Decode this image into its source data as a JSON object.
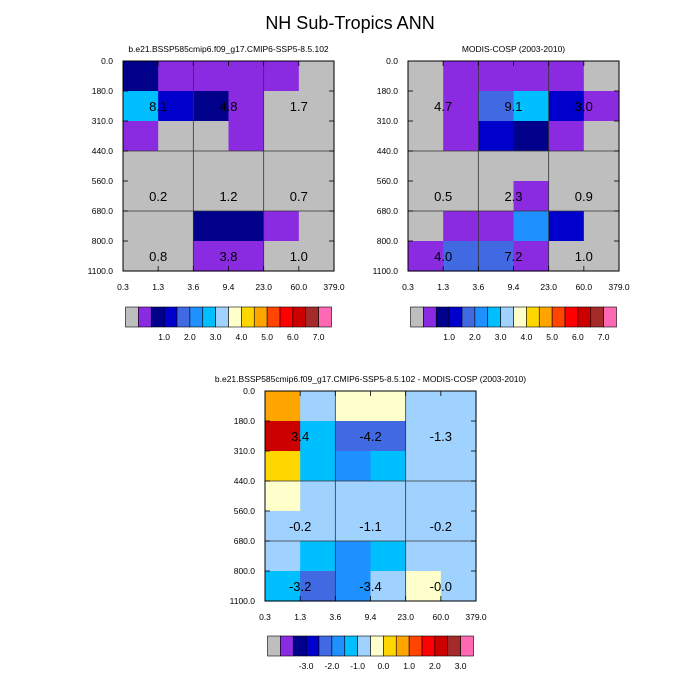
{
  "title": "NH Sub-Tropics ANN",
  "color_table": [
    "#BEBEBE",
    "#8A2BE2",
    "#00008B",
    "#0000CD",
    "#4169E1",
    "#1E90FF",
    "#00BFFF",
    "#A0D2FF",
    "#FFFFCC",
    "#FFD700",
    "#FFA500",
    "#FF4500",
    "#FF0000",
    "#CD0000",
    "#A52A2A",
    "#FF69B4"
  ],
  "chart_data": [
    {
      "type": "heatmap",
      "title": "b.e21.BSSP585cmip6.f09_g17.CMIP6-SSP5-8.5.102",
      "x_tick_labels": [
        "0.3",
        "1.3",
        "3.6",
        "9.4",
        "23.0",
        "60.0",
        "379.0"
      ],
      "y_tick_labels": [
        "0.0",
        "180.0",
        "310.0",
        "440.0",
        "560.0",
        "680.0",
        "800.0",
        "1100.0"
      ],
      "cells": [
        [
          2,
          1,
          1,
          1,
          1,
          0
        ],
        [
          6,
          3,
          2,
          1,
          0,
          0
        ],
        [
          1,
          0,
          0,
          1,
          0,
          0
        ],
        [
          0,
          0,
          0,
          0,
          0,
          0
        ],
        [
          0,
          0,
          0,
          0,
          0,
          0
        ],
        [
          0,
          0,
          2,
          2,
          1,
          0
        ],
        [
          0,
          0,
          1,
          1,
          0,
          0
        ]
      ],
      "annotations": [
        {
          "row": 1,
          "col": 1,
          "text": "8.1"
        },
        {
          "row": 1,
          "col": 3,
          "text": "4.8"
        },
        {
          "row": 1,
          "col": 5,
          "text": "1.7"
        },
        {
          "row": 4,
          "col": 1,
          "text": "0.2"
        },
        {
          "row": 4,
          "col": 3,
          "text": "1.2"
        },
        {
          "row": 4,
          "col": 5,
          "text": "0.7"
        },
        {
          "row": 6,
          "col": 1,
          "text": "0.8"
        },
        {
          "row": 6,
          "col": 3,
          "text": "3.8"
        },
        {
          "row": 6,
          "col": 5,
          "text": "1.0"
        }
      ],
      "colorbar_labels": [
        "1.0",
        "2.0",
        "3.0",
        "4.0",
        "5.0",
        "6.0",
        "7.0"
      ]
    },
    {
      "type": "heatmap",
      "title": "MODIS-COSP (2003-2010)",
      "x_tick_labels": [
        "0.3",
        "1.3",
        "3.6",
        "9.4",
        "23.0",
        "60.0",
        "379.0"
      ],
      "y_tick_labels": [
        "0.0",
        "180.0",
        "310.0",
        "440.0",
        "560.0",
        "680.0",
        "800.0",
        "1100.0"
      ],
      "cells": [
        [
          0,
          1,
          1,
          1,
          1,
          0
        ],
        [
          0,
          1,
          4,
          6,
          3,
          1
        ],
        [
          0,
          1,
          3,
          2,
          1,
          0
        ],
        [
          0,
          0,
          0,
          0,
          0,
          0
        ],
        [
          0,
          0,
          0,
          1,
          0,
          0
        ],
        [
          0,
          1,
          1,
          5,
          3,
          0
        ],
        [
          1,
          4,
          4,
          1,
          0,
          0
        ]
      ],
      "annotations": [
        {
          "row": 1,
          "col": 1,
          "text": "4.7"
        },
        {
          "row": 1,
          "col": 3,
          "text": "9.1"
        },
        {
          "row": 1,
          "col": 5,
          "text": "3.0"
        },
        {
          "row": 4,
          "col": 1,
          "text": "0.5"
        },
        {
          "row": 4,
          "col": 3,
          "text": "2.3"
        },
        {
          "row": 4,
          "col": 5,
          "text": "0.9"
        },
        {
          "row": 6,
          "col": 1,
          "text": "4.0"
        },
        {
          "row": 6,
          "col": 3,
          "text": "7.2"
        },
        {
          "row": 6,
          "col": 5,
          "text": "1.0"
        }
      ],
      "colorbar_labels": [
        "1.0",
        "2.0",
        "3.0",
        "4.0",
        "5.0",
        "6.0",
        "7.0"
      ]
    },
    {
      "type": "heatmap",
      "title": "b.e21.BSSP585cmip6.f09_g17.CMIP6-SSP5-8.5.102 - MODIS-COSP (2003-2010)",
      "x_tick_labels": [
        "0.3",
        "1.3",
        "3.6",
        "9.4",
        "23.0",
        "60.0",
        "379.0"
      ],
      "y_tick_labels": [
        "0.0",
        "180.0",
        "310.0",
        "440.0",
        "560.0",
        "680.0",
        "800.0",
        "1100.0"
      ],
      "cells": [
        [
          10,
          7,
          8,
          8,
          7,
          7
        ],
        [
          13,
          6,
          4,
          4,
          7,
          7
        ],
        [
          9,
          6,
          5,
          6,
          7,
          7
        ],
        [
          8,
          7,
          7,
          7,
          7,
          7
        ],
        [
          7,
          7,
          7,
          7,
          7,
          7
        ],
        [
          7,
          6,
          5,
          6,
          7,
          7
        ],
        [
          6,
          4,
          5,
          7,
          8,
          7
        ]
      ],
      "annotations": [
        {
          "row": 1,
          "col": 1,
          "text": "3.4"
        },
        {
          "row": 1,
          "col": 3,
          "text": "-4.2"
        },
        {
          "row": 1,
          "col": 5,
          "text": "-1.3"
        },
        {
          "row": 4,
          "col": 1,
          "text": "-0.2"
        },
        {
          "row": 4,
          "col": 3,
          "text": "-1.1"
        },
        {
          "row": 4,
          "col": 5,
          "text": "-0.2"
        },
        {
          "row": 6,
          "col": 1,
          "text": "-3.2"
        },
        {
          "row": 6,
          "col": 3,
          "text": "-3.4"
        },
        {
          "row": 6,
          "col": 5,
          "text": "-0.0"
        }
      ],
      "colorbar_labels": [
        "-3.0",
        "-2.0",
        "-1.0",
        "0.0",
        "1.0",
        "2.0",
        "3.0"
      ]
    }
  ]
}
